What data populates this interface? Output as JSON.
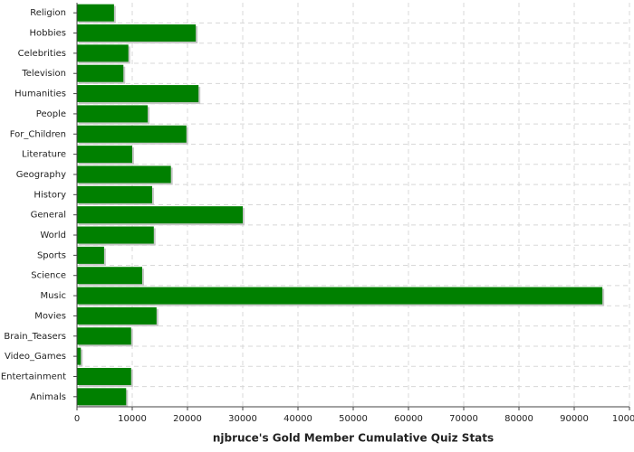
{
  "chart_data": {
    "type": "hbar",
    "title": "njbruce's Gold Member Cumulative Quiz Stats",
    "categories": [
      "Religion",
      "Hobbies",
      "Celebrities",
      "Television",
      "Humanities",
      "People",
      "For_Children",
      "Literature",
      "Geography",
      "History",
      "General",
      "World",
      "Sports",
      "Science",
      "Music",
      "Movies",
      "Brain_Teasers",
      "Video_Games",
      "Entertainment",
      "Animals"
    ],
    "values": [
      6700,
      21500,
      9300,
      8400,
      22000,
      12800,
      19800,
      10000,
      17000,
      13600,
      30000,
      13900,
      4900,
      11800,
      95100,
      14400,
      9800,
      700,
      9800,
      8900
    ],
    "color": "#008000",
    "xlim": [
      0,
      100000
    ],
    "xticks": [
      0,
      10000,
      20000,
      30000,
      40000,
      50000,
      60000,
      70000,
      80000,
      90000,
      100000
    ],
    "grid": true
  }
}
